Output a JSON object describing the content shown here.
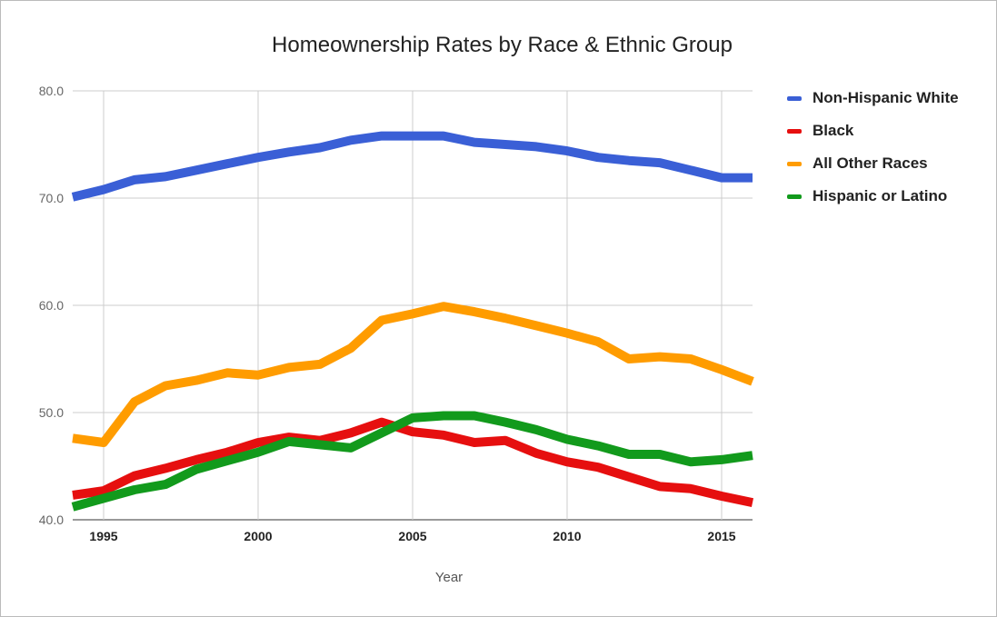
{
  "chart_data": {
    "type": "line",
    "title": "Homeownership Rates by Race & Ethnic Group",
    "xlabel": "Year",
    "ylabel": "",
    "xlim": [
      1994,
      2016
    ],
    "ylim": [
      40,
      80
    ],
    "yticks": [
      "40.0",
      "50.0",
      "60.0",
      "70.0",
      "80.0"
    ],
    "xticks": [
      "1995",
      "2000",
      "2005",
      "2010",
      "2015"
    ],
    "grid": true,
    "legend": "right",
    "x": [
      1994,
      1995,
      1996,
      1997,
      1998,
      1999,
      2000,
      2001,
      2002,
      2003,
      2004,
      2005,
      2006,
      2007,
      2008,
      2009,
      2010,
      2011,
      2012,
      2013,
      2014,
      2015,
      2016
    ],
    "series": [
      {
        "name": "Non-Hispanic White",
        "color": "#3a5fd6",
        "values": [
          70.1,
          70.8,
          71.7,
          72.0,
          72.6,
          73.2,
          73.8,
          74.3,
          74.7,
          75.4,
          75.8,
          75.8,
          75.8,
          75.2,
          75.0,
          74.8,
          74.4,
          73.8,
          73.5,
          73.3,
          72.6,
          71.9,
          71.9
        ]
      },
      {
        "name": "Black",
        "color": "#e60f0f",
        "values": [
          42.3,
          42.7,
          44.1,
          44.8,
          45.6,
          46.3,
          47.2,
          47.7,
          47.4,
          48.1,
          49.1,
          48.2,
          47.9,
          47.2,
          47.4,
          46.2,
          45.4,
          44.9,
          44.0,
          43.1,
          42.9,
          42.2,
          41.6
        ]
      },
      {
        "name": "All Other Races",
        "color": "#ff9c00",
        "values": [
          47.6,
          47.2,
          51.0,
          52.5,
          53.0,
          53.7,
          53.5,
          54.2,
          54.5,
          56.0,
          58.6,
          59.2,
          59.9,
          59.4,
          58.8,
          58.1,
          57.4,
          56.6,
          55.0,
          55.2,
          55.0,
          54.0,
          52.9
        ]
      },
      {
        "name": "Hispanic or Latino",
        "color": "#129a1c",
        "values": [
          41.2,
          42.0,
          42.8,
          43.3,
          44.7,
          45.5,
          46.3,
          47.3,
          47.0,
          46.7,
          48.1,
          49.5,
          49.7,
          49.7,
          49.1,
          48.4,
          47.5,
          46.9,
          46.1,
          46.1,
          45.4,
          45.6,
          46.0
        ]
      }
    ]
  }
}
